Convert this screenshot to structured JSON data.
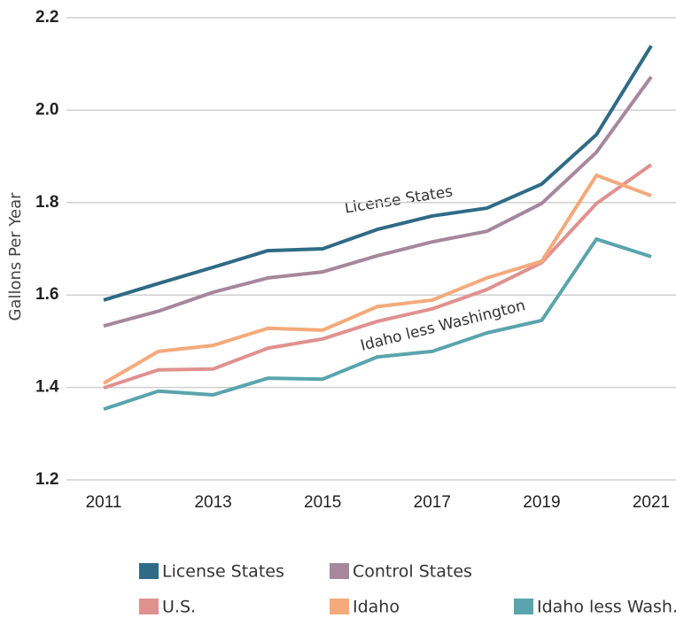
{
  "chart_data": {
    "type": "line",
    "y_label": "Gallons Per Year",
    "x": [
      2011,
      2012,
      2013,
      2014,
      2015,
      2016,
      2017,
      2018,
      2019,
      2020,
      2021
    ],
    "xlim": [
      2011,
      2021
    ],
    "xticks": [
      2011,
      2013,
      2015,
      2017,
      2019,
      2021
    ],
    "ylim": [
      1.2,
      2.2
    ],
    "yticks": [
      1.2,
      1.4,
      1.6,
      1.8,
      {
        "value": 2.0,
        "label": "2.0"
      },
      2.2
    ],
    "grid": true,
    "series": [
      {
        "name": "License States",
        "color": "#2f6b86",
        "values": [
          1.589,
          1.625,
          1.66,
          1.696,
          1.7,
          1.742,
          1.771,
          1.788,
          1.84,
          1.947,
          2.139
        ]
      },
      {
        "name": "Control States",
        "color": "#a6879c",
        "values": [
          1.533,
          1.565,
          1.606,
          1.637,
          1.65,
          1.685,
          1.715,
          1.738,
          1.798,
          1.909,
          2.072
        ]
      },
      {
        "name": "U.S.",
        "color": "#e0918f",
        "values": [
          1.399,
          1.438,
          1.44,
          1.485,
          1.505,
          1.543,
          1.57,
          1.612,
          1.67,
          1.798,
          1.882
        ]
      },
      {
        "name": "Idaho",
        "color": "#f4aa7b",
        "values": [
          1.409,
          1.478,
          1.491,
          1.528,
          1.524,
          1.575,
          1.589,
          1.637,
          1.673,
          1.859,
          1.815
        ]
      },
      {
        "name": "Idaho less Wash.",
        "color": "#5aa4ad",
        "values": [
          1.353,
          1.392,
          1.384,
          1.42,
          1.418,
          1.466,
          1.478,
          1.518,
          1.545,
          1.721,
          1.683
        ]
      }
    ],
    "annotations": [
      "License States",
      "Idaho less Washington"
    ]
  }
}
